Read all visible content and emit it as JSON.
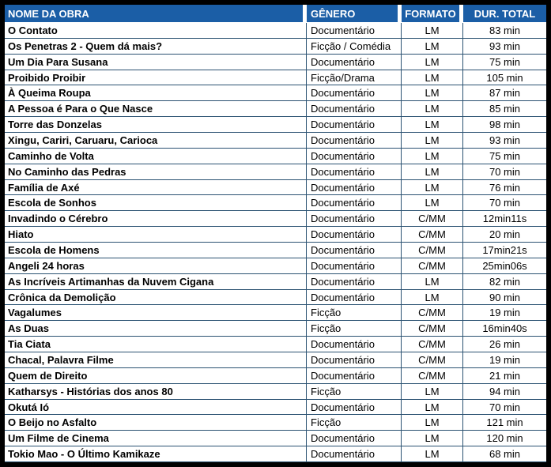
{
  "colors": {
    "header_bg": "#1B5EA6",
    "header_text": "#FFFFFF",
    "grid_line": "#2B5272",
    "outer_border": "#000000",
    "body_text": "#000000"
  },
  "table": {
    "columns": [
      {
        "label": "NOME DA OBRA"
      },
      {
        "label": "GÊNERO"
      },
      {
        "label": "FORMATO"
      },
      {
        "label": "DUR. TOTAL"
      }
    ],
    "rows": [
      {
        "name": "O Contato",
        "genre": "Documentário",
        "format": "LM",
        "duration": "83 min"
      },
      {
        "name": "Os Penetras 2 - Quem dá mais?",
        "genre": "Ficção / Comédia",
        "format": "LM",
        "duration": "93 min"
      },
      {
        "name": "Um Dia Para Susana",
        "genre": "Documentário",
        "format": "LM",
        "duration": "75 min"
      },
      {
        "name": "Proibido Proibir",
        "genre": "Ficção/Drama",
        "format": "LM",
        "duration": "105 min"
      },
      {
        "name": "À Queima Roupa",
        "genre": "Documentário",
        "format": "LM",
        "duration": "87 min"
      },
      {
        "name": "A Pessoa é Para o Que Nasce",
        "genre": "Documentário",
        "format": "LM",
        "duration": "85 min"
      },
      {
        "name": "Torre das Donzelas",
        "genre": "Documentário",
        "format": "LM",
        "duration": "98 min"
      },
      {
        "name": "Xingu, Cariri, Caruaru, Carioca",
        "genre": "Documentário",
        "format": "LM",
        "duration": "93 min"
      },
      {
        "name": "Caminho de Volta",
        "genre": "Documentário",
        "format": "LM",
        "duration": "75 min"
      },
      {
        "name": "No Caminho das Pedras",
        "genre": "Documentário",
        "format": "LM",
        "duration": "70 min"
      },
      {
        "name": "Família de Axé",
        "genre": "Documentário",
        "format": "LM",
        "duration": "76 min"
      },
      {
        "name": "Escola de Sonhos",
        "genre": "Documentário",
        "format": "LM",
        "duration": "70 min"
      },
      {
        "name": "Invadindo o Cérebro",
        "genre": "Documentário",
        "format": "C/MM",
        "duration": "12min11s"
      },
      {
        "name": "Hiato",
        "genre": "Documentário",
        "format": "C/MM",
        "duration": "20 min"
      },
      {
        "name": "Escola de Homens",
        "genre": "Documentário",
        "format": "C/MM",
        "duration": "17min21s"
      },
      {
        "name": "Angeli 24 horas",
        "genre": "Documentário",
        "format": "C/MM",
        "duration": "25min06s"
      },
      {
        "name": "As Incríveis Artimanhas da Nuvem Cigana",
        "genre": "Documentário",
        "format": "LM",
        "duration": "82 min"
      },
      {
        "name": "Crônica da Demolição",
        "genre": "Documentário",
        "format": "LM",
        "duration": "90 min"
      },
      {
        "name": "Vagalumes",
        "genre": "Ficção",
        "format": "C/MM",
        "duration": "19 min"
      },
      {
        "name": "As Duas",
        "genre": "Ficção",
        "format": "C/MM",
        "duration": "16min40s"
      },
      {
        "name": "Tia Ciata",
        "genre": "Documentário",
        "format": "C/MM",
        "duration": "26 min"
      },
      {
        "name": "Chacal, Palavra Filme",
        "genre": "Documentário",
        "format": "C/MM",
        "duration": "19 min"
      },
      {
        "name": "Quem de Direito",
        "genre": "Documentário",
        "format": "C/MM",
        "duration": "21 min"
      },
      {
        "name": "Katharsys - Histórias dos anos 80",
        "genre": "Ficção",
        "format": "LM",
        "duration": "94 min"
      },
      {
        "name": "Okutá Ió",
        "genre": "Documentário",
        "format": "LM",
        "duration": "70 min"
      },
      {
        "name": "O Beijo no Asfalto",
        "genre": "Ficção",
        "format": "LM",
        "duration": "121 min"
      },
      {
        "name": "Um Filme de Cinema",
        "genre": "Documentário",
        "format": "LM",
        "duration": "120 min"
      },
      {
        "name": "Tokio Mao - O Último Kamikaze",
        "genre": "Documentário",
        "format": "LM",
        "duration": "68 min"
      }
    ]
  }
}
